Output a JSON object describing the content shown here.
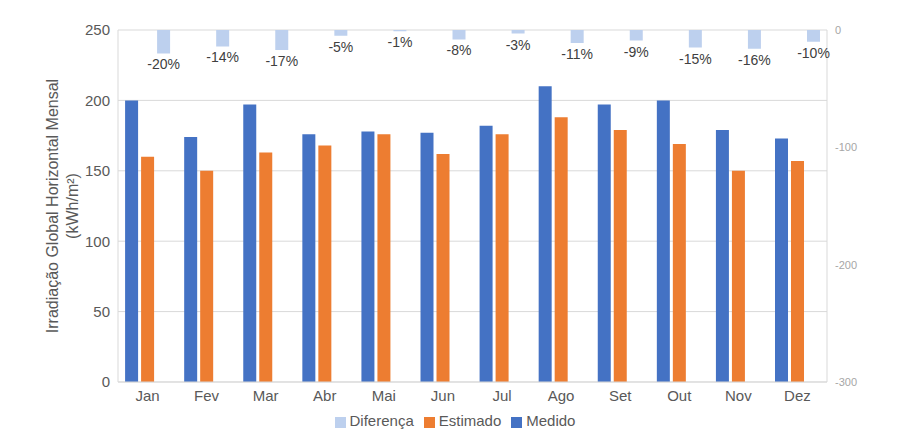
{
  "chart_data": {
    "type": "bar",
    "y_label": "Irradiação Global Horizontal Mensal (kWh/m²)",
    "categories": [
      "Jan",
      "Fev",
      "Mar",
      "Abr",
      "Mai",
      "Jun",
      "Jul",
      "Ago",
      "Set",
      "Out",
      "Nov",
      "Dez"
    ],
    "series": [
      {
        "name": "Medido",
        "color": "#4472c4",
        "values": [
          200,
          174,
          197,
          176,
          178,
          177,
          182,
          210,
          197,
          200,
          179,
          173
        ]
      },
      {
        "name": "Estimado",
        "color": "#ed7d31",
        "values": [
          160,
          150,
          163,
          168,
          176,
          162,
          176,
          188,
          179,
          169,
          150,
          157
        ]
      },
      {
        "name": "Diferença",
        "color": "#bdd0ee",
        "axis": "y2",
        "data_labels": true,
        "values": [
          -20,
          -14,
          -17,
          -5,
          -1,
          -8,
          -3,
          -11,
          -9,
          -15,
          -16,
          -10
        ],
        "value_labels": [
          "-20%",
          "-14%",
          "-17%",
          "-5%",
          "-1%",
          "-8%",
          "-3%",
          "-11%",
          "-9%",
          "-15%",
          "-16%",
          "-10%"
        ]
      }
    ],
    "ylim": [
      0,
      250
    ],
    "yticks": [
      0,
      50,
      100,
      150,
      200,
      250
    ],
    "y2lim": [
      -300,
      0
    ],
    "y2ticks": [
      -300,
      -200,
      -100,
      0
    ],
    "grid": true,
    "legend": "bottom"
  }
}
